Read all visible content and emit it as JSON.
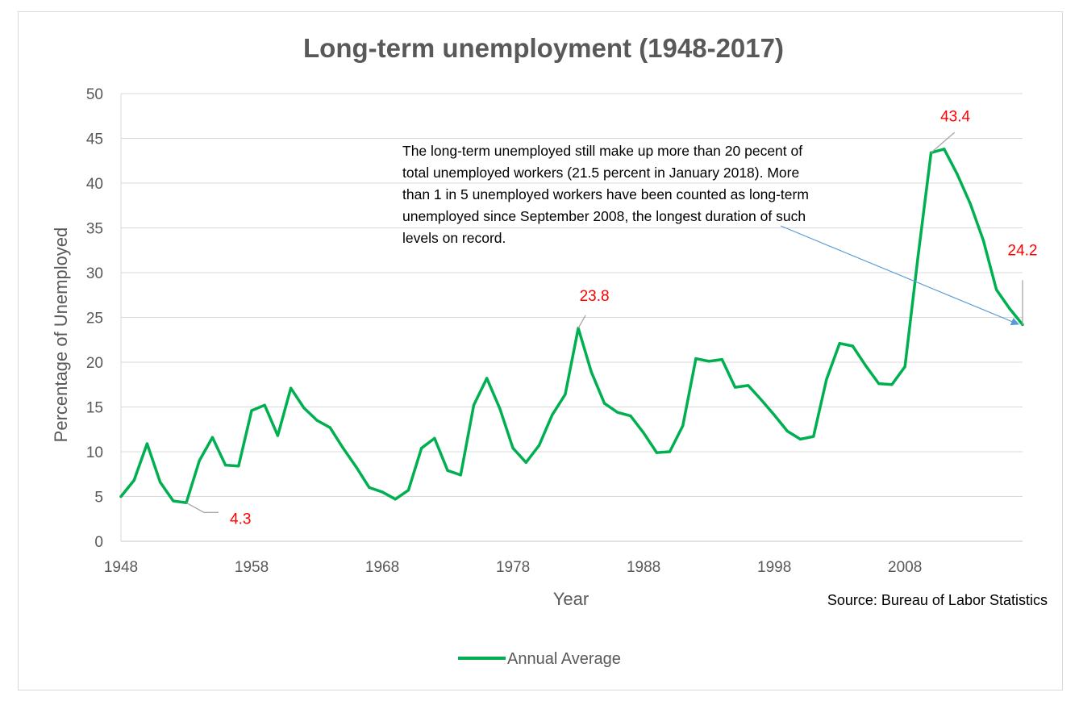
{
  "chart_data": {
    "type": "line",
    "title": "Long-term unemployment (1948-2017)",
    "xlabel": "Year",
    "ylabel": "Percentage of Unemployed",
    "xlim": [
      1948,
      2017
    ],
    "ylim": [
      0,
      50
    ],
    "x_ticks": [
      "1948",
      "1958",
      "1968",
      "1978",
      "1988",
      "1998",
      "2008"
    ],
    "y_ticks": [
      "0",
      "5",
      "10",
      "15",
      "20",
      "25",
      "30",
      "35",
      "40",
      "45",
      "50"
    ],
    "grid": true,
    "legend_position": "bottom",
    "colors": {
      "line": "#00b050",
      "annotation_text": "#ff0000",
      "arrow": "#5b9bd5",
      "grid": "#d9d9d9",
      "leader": "#a6a6a6"
    },
    "series": [
      {
        "name": "Annual Average",
        "x": [
          1948,
          1949,
          1950,
          1951,
          1952,
          1953,
          1954,
          1955,
          1956,
          1957,
          1958,
          1959,
          1960,
          1961,
          1962,
          1963,
          1964,
          1965,
          1966,
          1967,
          1968,
          1969,
          1970,
          1971,
          1972,
          1973,
          1974,
          1975,
          1976,
          1977,
          1978,
          1979,
          1980,
          1981,
          1982,
          1983,
          1984,
          1985,
          1986,
          1987,
          1988,
          1989,
          1990,
          1991,
          1992,
          1993,
          1994,
          1995,
          1996,
          1997,
          1998,
          1999,
          2000,
          2001,
          2002,
          2003,
          2004,
          2005,
          2006,
          2007,
          2008,
          2009,
          2010,
          2011,
          2012,
          2013,
          2014,
          2015,
          2016,
          2017
        ],
        "values": [
          5.0,
          6.8,
          10.9,
          6.6,
          4.5,
          4.3,
          9.0,
          11.6,
          8.5,
          8.4,
          14.6,
          15.2,
          11.8,
          17.1,
          14.9,
          13.5,
          12.7,
          10.4,
          8.3,
          6.0,
          5.5,
          4.7,
          5.7,
          10.4,
          11.5,
          7.9,
          7.4,
          15.2,
          18.2,
          14.8,
          10.4,
          8.8,
          10.7,
          14.1,
          16.4,
          23.8,
          18.9,
          15.4,
          14.4,
          14.0,
          12.1,
          9.9,
          10.0,
          12.9,
          20.4,
          20.1,
          20.3,
          17.2,
          17.4,
          15.8,
          14.1,
          12.3,
          11.4,
          11.7,
          18.1,
          22.1,
          21.8,
          19.6,
          17.6,
          17.5,
          19.5,
          31.8,
          43.4,
          43.8,
          41.0,
          37.7,
          33.6,
          28.1,
          26.0,
          24.2
        ]
      }
    ],
    "annotations": [
      {
        "year": 1953,
        "value": 4.3,
        "label": "4.3"
      },
      {
        "year": 1983,
        "value": 23.8,
        "label": "23.8"
      },
      {
        "year": 2010,
        "value": 43.4,
        "label": "43.4"
      },
      {
        "year": 2017,
        "value": 24.2,
        "label": "24.2"
      }
    ],
    "note": [
      "The long-term unemployed still make up more than 20 pecent of",
      "total unemployed workers (21.5 percent in January 2018). More",
      "than 1 in 5 unemployed workers have been counted as long-term",
      "unemployed since September 2008, the longest duration of such",
      "levels on record."
    ],
    "source": "Source: Bureau of Labor Statistics"
  }
}
